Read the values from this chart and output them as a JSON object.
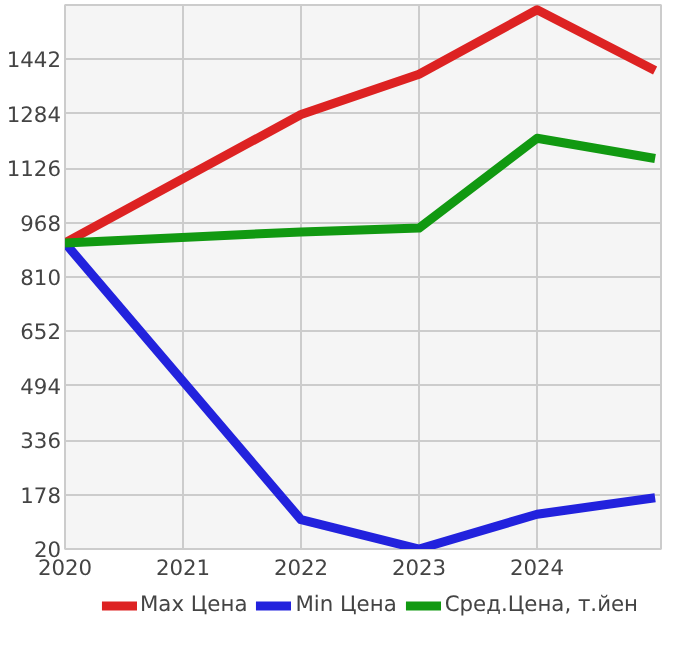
{
  "chart_data": {
    "type": "line",
    "x": [
      2020,
      2022,
      2023,
      2024,
      2025
    ],
    "xlim": [
      2020,
      2025.05
    ],
    "xticks": [
      2020,
      2021,
      2022,
      2023,
      2024
    ],
    "ylim": [
      20,
      1600
    ],
    "yticks": [
      20,
      178,
      336,
      494,
      652,
      810,
      968,
      1126,
      1284,
      1442
    ],
    "grid": true,
    "legend": "bottom",
    "marker": "none",
    "line_style": "solid",
    "series": [
      {
        "name": "Max Цена",
        "color": "#dd2222",
        "values": [
          909,
          1282,
          1399,
          1586,
          1410
        ]
      },
      {
        "name": "Min Цена",
        "color": "#2222dd",
        "values": [
          909,
          105,
          20,
          121,
          169
        ]
      },
      {
        "name": "Сред.Цена, т.йен",
        "color": "#119911",
        "values": [
          909,
          941,
          952,
          1213,
          1154
        ]
      }
    ]
  }
}
